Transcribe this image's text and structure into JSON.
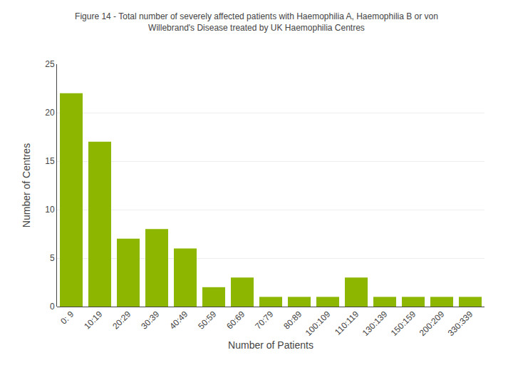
{
  "chart_data": {
    "type": "bar",
    "title": "Figure 14 - Total number of severely affected patients with Haemophilia A, Haemophilia B or von\nWillebrand's Disease treated by UK Haemophilia Centres",
    "x_label": "Number of Patients",
    "y_label": "Number of Centres",
    "categories": [
      "0: 9",
      "10:19",
      "20:29",
      "30:39",
      "40:49",
      "50:59",
      "60:69",
      "70:79",
      "80:89",
      "100:109",
      "110:119",
      "130:139",
      "150:159",
      "200:209",
      "330:339"
    ],
    "values": [
      22,
      17,
      7,
      8,
      6,
      2,
      3,
      1,
      1,
      1,
      3,
      1,
      1,
      1,
      1
    ],
    "color": "#8db600",
    "ylim": [
      0,
      25
    ],
    "yticks": [
      0,
      5,
      10,
      15,
      20,
      25
    ],
    "grid": true
  }
}
